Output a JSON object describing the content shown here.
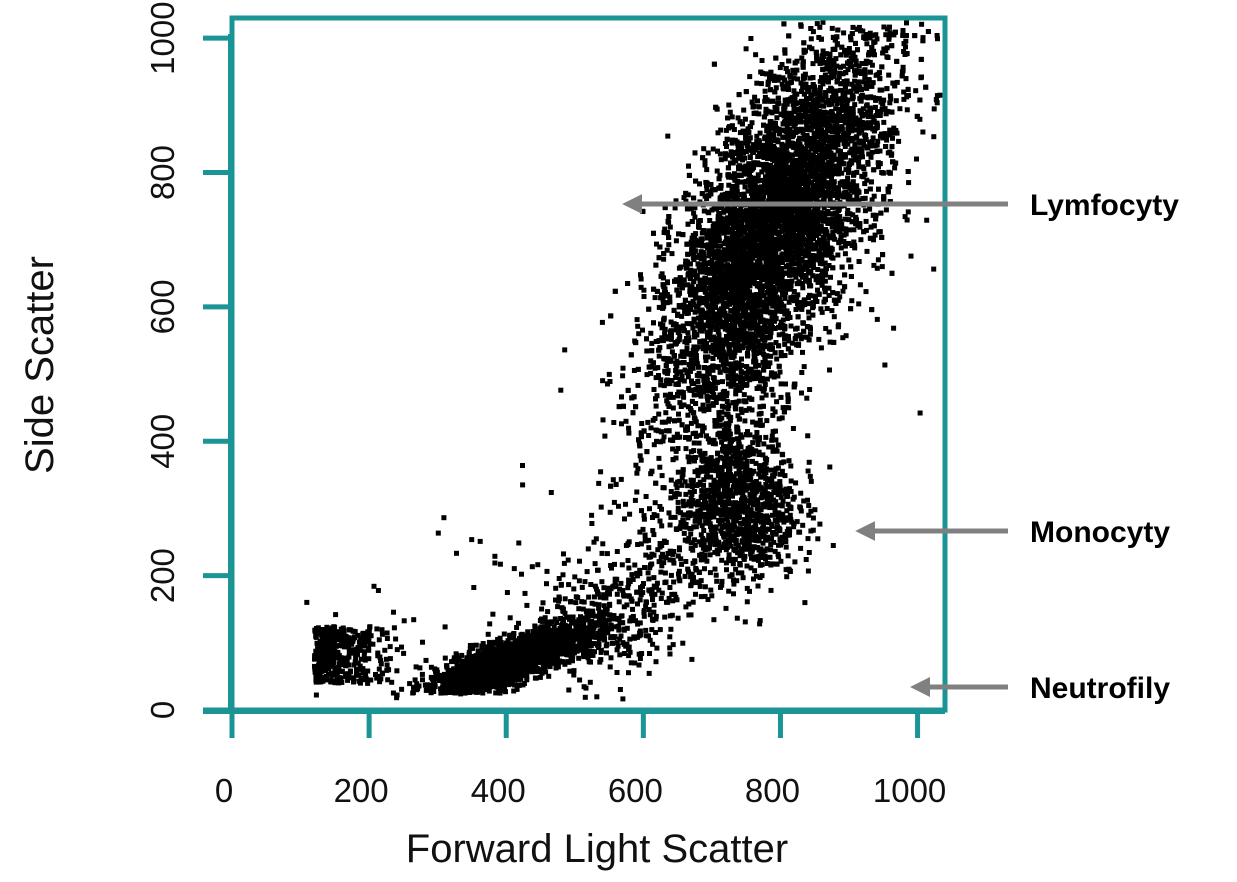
{
  "chart_data": {
    "type": "scatter",
    "xlabel": "Forward Light Scatter",
    "ylabel": "Side Scatter",
    "xlim": [
      0,
      1040
    ],
    "ylim": [
      0,
      1030
    ],
    "x_ticks": [
      0,
      200,
      400,
      600,
      800,
      1000
    ],
    "y_ticks": [
      0,
      200,
      400,
      600,
      800,
      1000
    ],
    "grid": false,
    "frame_color": "#1a9494",
    "point_color": "#000000",
    "arrow_color": "#808080",
    "clusters": [
      {
        "label": "Lymfocyty",
        "arrow_target": [
          580,
          55
        ],
        "center": [
          400,
          70
        ],
        "approx_points": 2200
      },
      {
        "label": "Monocyty",
        "arrow_target": [
          920,
          280
        ],
        "center": [
          745,
          310
        ],
        "approx_points": 900
      },
      {
        "label": "Neutrofily",
        "arrow_target": [
          1000,
          755
        ],
        "center": [
          790,
          720
        ],
        "approx_points": 7500
      }
    ],
    "annotations": [
      "Neutrofily",
      "Monocyty",
      "Lymfocyty"
    ]
  }
}
